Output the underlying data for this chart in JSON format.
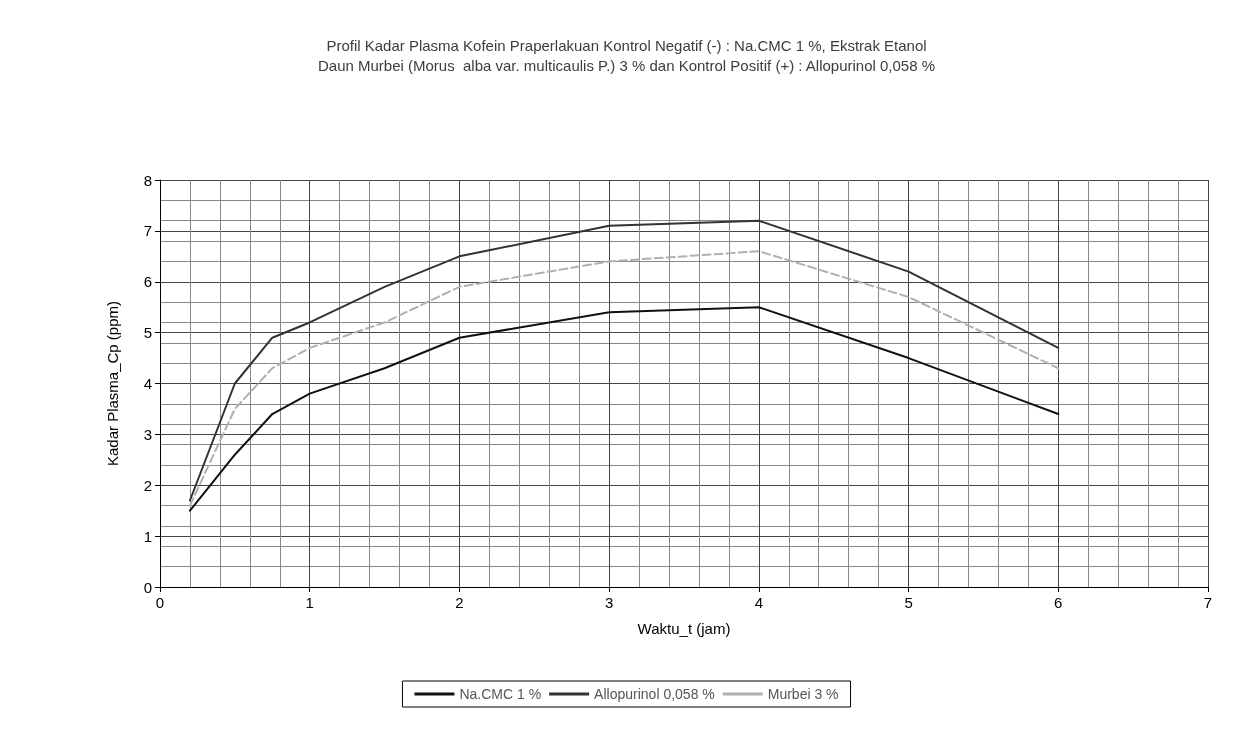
{
  "chart_data": {
    "type": "line",
    "title": "Profil Kadar Plasma Kofein Praperlakuan Kontrol Negatif (-) : Na.CMC 1 %, Ekstrak Etanol\nDaun Murbei (Morus  alba var. multicaulis P.) 3 % dan Kontrol Positif (+) : Allopurinol 0,058 %",
    "xlabel": "Waktu_t (jam)",
    "ylabel": "Kadar Plasma_Cp (ppm)",
    "x": [
      0.2,
      0.5,
      0.75,
      1,
      1.5,
      2,
      3,
      4,
      5,
      6
    ],
    "series": [
      {
        "name": "Na.CMC 1 %",
        "color": "#111111",
        "line_style": "solid",
        "values": [
          1.5,
          2.6,
          3.4,
          3.8,
          4.3,
          4.9,
          5.4,
          5.5,
          4.5,
          3.4
        ]
      },
      {
        "name": "Allopurinol 0,058 %",
        "color": "#333333",
        "line_style": "solid",
        "values": [
          1.7,
          4.0,
          4.9,
          5.2,
          5.9,
          6.5,
          7.1,
          7.2,
          6.2,
          4.7
        ]
      },
      {
        "name": "Murbei 3 %",
        "color": "#b0b0b0",
        "line_style": "dashed",
        "values": [
          1.6,
          3.5,
          4.3,
          4.7,
          5.2,
          5.9,
          6.4,
          6.6,
          5.7,
          4.3
        ]
      }
    ],
    "xlim": [
      0,
      7
    ],
    "xticks": [
      0,
      1,
      2,
      3,
      4,
      5,
      6,
      7
    ],
    "ylim": [
      0,
      8
    ],
    "yticks": [
      0,
      1,
      2,
      3,
      4,
      5,
      6,
      7,
      8
    ],
    "grid": true,
    "legend": "bottom",
    "marker": "none"
  }
}
